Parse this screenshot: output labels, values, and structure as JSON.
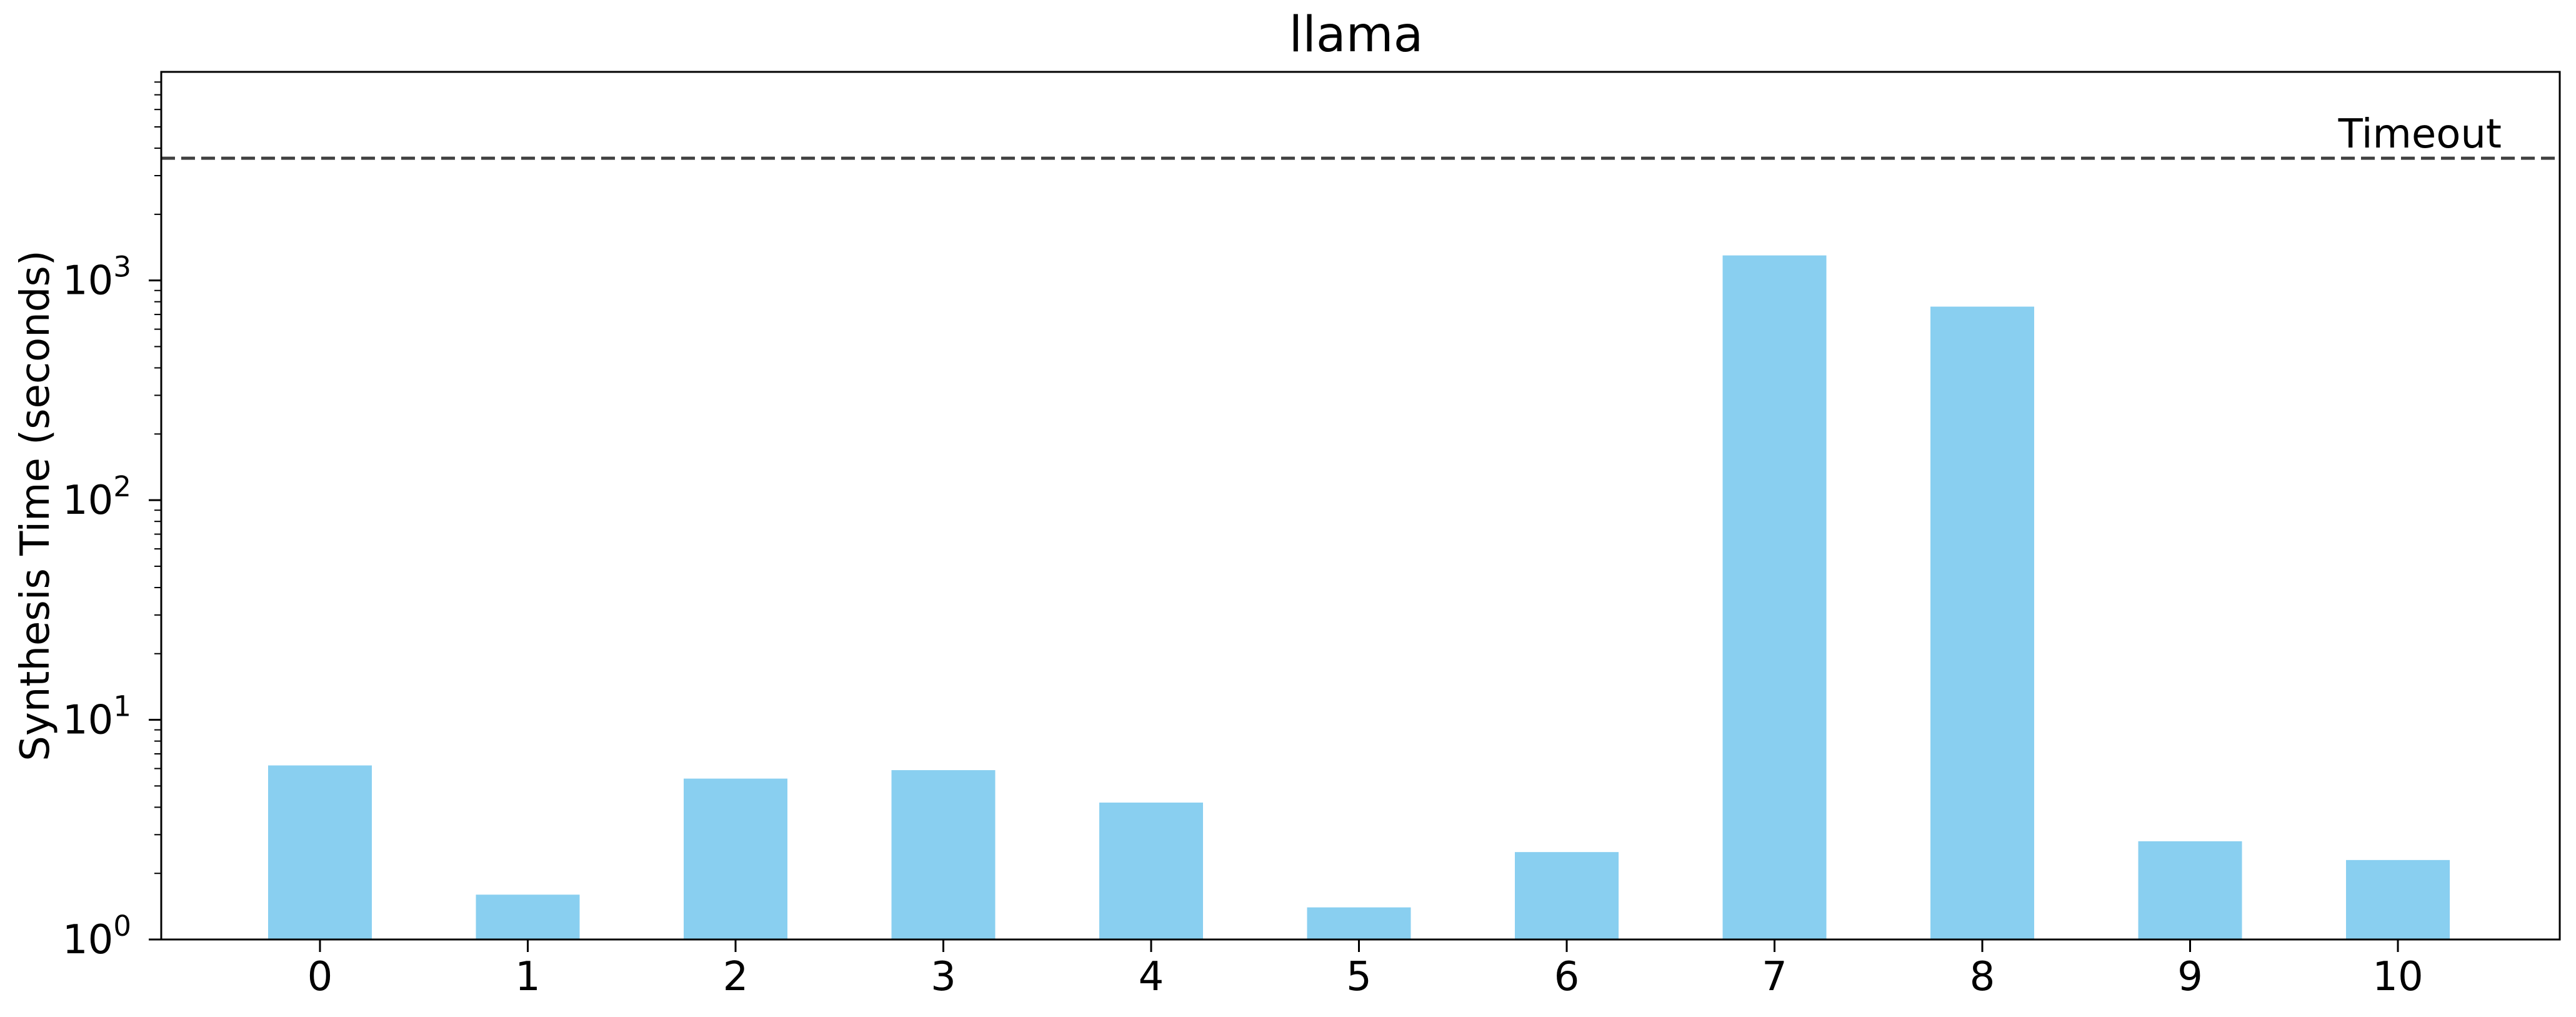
{
  "chart_data": {
    "type": "bar",
    "title": "llama",
    "xlabel": "",
    "ylabel": "Synthesis Time (seconds)",
    "yscale": "log",
    "ylim": [
      1,
      8900
    ],
    "categories": [
      "0",
      "1",
      "2",
      "3",
      "4",
      "5",
      "6",
      "7",
      "8",
      "9",
      "10"
    ],
    "values": [
      6.2,
      1.6,
      5.4,
      5.9,
      4.2,
      1.4,
      2.5,
      1300,
      760,
      2.8,
      2.3
    ],
    "y_ticks": [
      {
        "value": 1,
        "base": "10",
        "exp": "0"
      },
      {
        "value": 10,
        "base": "10",
        "exp": "1"
      },
      {
        "value": 100,
        "base": "10",
        "exp": "2"
      },
      {
        "value": 1000,
        "base": "10",
        "exp": "3"
      }
    ],
    "reference_line": {
      "value": 3600,
      "label": "Timeout",
      "style": "dashed",
      "color": "#404040"
    },
    "bar_color": "#89CFF0",
    "grid": false,
    "legend": "none"
  }
}
